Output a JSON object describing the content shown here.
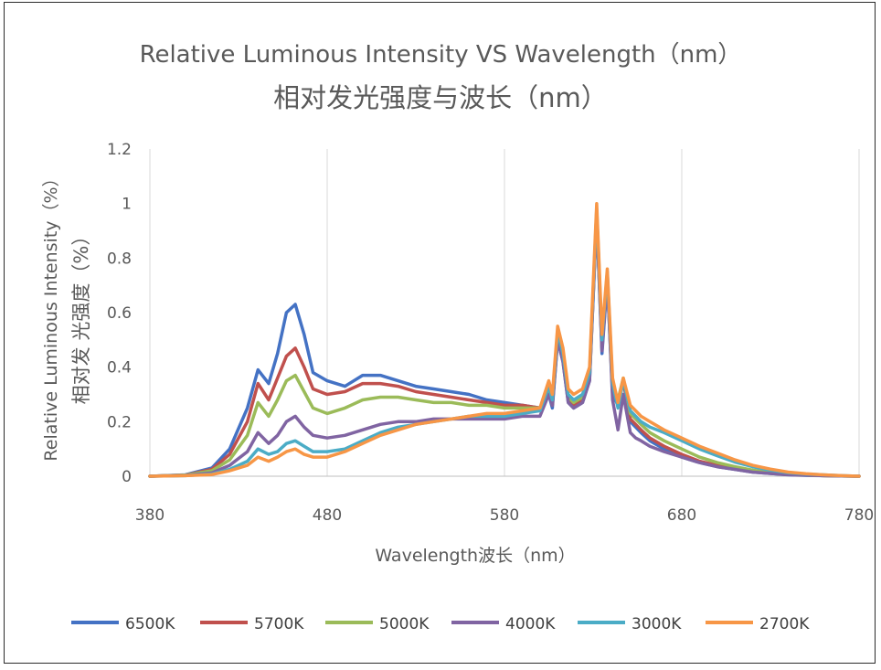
{
  "chart_data": {
    "type": "line",
    "title": "Relative Luminous Intensity VS Wavelength（nm）",
    "subtitle": "相对发光强度与波长（nm）",
    "xlabel": "Wavelength波长（nm）",
    "ylabel": "Relative Luminous Intensity（%）",
    "ylabel2": "相对发 光强度（%）",
    "xlim": [
      380,
      780
    ],
    "ylim": [
      0,
      1.2
    ],
    "x_ticks": [
      "380",
      "480",
      "580",
      "680",
      "780"
    ],
    "y_ticks": [
      "0",
      "0.2",
      "0.4",
      "0.6",
      "0.8",
      "1",
      "1.2"
    ],
    "grid": "vertical",
    "legend_position": "bottom",
    "x": [
      380,
      400,
      415,
      425,
      435,
      441,
      447,
      452,
      457,
      462,
      467,
      472,
      480,
      490,
      500,
      510,
      520,
      530,
      540,
      550,
      560,
      570,
      580,
      590,
      600,
      605,
      607,
      610,
      613,
      616,
      619,
      624,
      628,
      632,
      635,
      638,
      641,
      644,
      647,
      651,
      654,
      657,
      662,
      670,
      680,
      690,
      700,
      710,
      720,
      730,
      740,
      750,
      760,
      770,
      780
    ],
    "series": [
      {
        "name": "6500K",
        "color": "#4472c4",
        "values": [
          0,
          0.005,
          0.03,
          0.1,
          0.25,
          0.39,
          0.34,
          0.45,
          0.6,
          0.63,
          0.52,
          0.38,
          0.35,
          0.33,
          0.37,
          0.37,
          0.35,
          0.33,
          0.32,
          0.31,
          0.3,
          0.28,
          0.27,
          0.26,
          0.25,
          0.3,
          0.25,
          0.5,
          0.42,
          0.27,
          0.25,
          0.27,
          0.35,
          0.95,
          0.45,
          0.72,
          0.3,
          0.26,
          0.35,
          0.2,
          0.18,
          0.16,
          0.13,
          0.1,
          0.07,
          0.05,
          0.035,
          0.025,
          0.015,
          0.01,
          0.005,
          0.003,
          0.002,
          0.001,
          0
        ]
      },
      {
        "name": "5700K",
        "color": "#c0504d",
        "values": [
          0,
          0.004,
          0.025,
          0.08,
          0.2,
          0.34,
          0.28,
          0.36,
          0.44,
          0.47,
          0.4,
          0.32,
          0.3,
          0.31,
          0.34,
          0.34,
          0.33,
          0.31,
          0.3,
          0.29,
          0.28,
          0.27,
          0.26,
          0.26,
          0.25,
          0.31,
          0.26,
          0.51,
          0.43,
          0.28,
          0.26,
          0.28,
          0.36,
          0.96,
          0.47,
          0.73,
          0.31,
          0.27,
          0.35,
          0.21,
          0.19,
          0.17,
          0.14,
          0.11,
          0.08,
          0.055,
          0.04,
          0.028,
          0.018,
          0.011,
          0.006,
          0.004,
          0.002,
          0.001,
          0
        ]
      },
      {
        "name": "5000K",
        "color": "#9bbb59",
        "values": [
          0,
          0.004,
          0.02,
          0.06,
          0.15,
          0.27,
          0.22,
          0.28,
          0.35,
          0.37,
          0.31,
          0.25,
          0.23,
          0.25,
          0.28,
          0.29,
          0.29,
          0.28,
          0.27,
          0.27,
          0.26,
          0.26,
          0.25,
          0.25,
          0.25,
          0.32,
          0.27,
          0.52,
          0.44,
          0.29,
          0.27,
          0.29,
          0.37,
          0.97,
          0.48,
          0.74,
          0.32,
          0.28,
          0.36,
          0.23,
          0.21,
          0.19,
          0.16,
          0.13,
          0.1,
          0.07,
          0.05,
          0.035,
          0.022,
          0.013,
          0.007,
          0.004,
          0.002,
          0.001,
          0
        ]
      },
      {
        "name": "4000K",
        "color": "#8064a2",
        "values": [
          0,
          0.003,
          0.012,
          0.04,
          0.09,
          0.16,
          0.12,
          0.15,
          0.2,
          0.22,
          0.18,
          0.15,
          0.14,
          0.15,
          0.17,
          0.19,
          0.2,
          0.2,
          0.21,
          0.21,
          0.21,
          0.21,
          0.21,
          0.22,
          0.22,
          0.3,
          0.26,
          0.5,
          0.42,
          0.27,
          0.25,
          0.27,
          0.35,
          0.96,
          0.46,
          0.73,
          0.28,
          0.17,
          0.3,
          0.16,
          0.14,
          0.13,
          0.11,
          0.09,
          0.07,
          0.05,
          0.035,
          0.025,
          0.015,
          0.01,
          0.006,
          0.004,
          0.002,
          0.001,
          0
        ]
      },
      {
        "name": "3000K",
        "color": "#4bacc6",
        "values": [
          0,
          0.002,
          0.008,
          0.025,
          0.055,
          0.1,
          0.08,
          0.09,
          0.12,
          0.13,
          0.11,
          0.09,
          0.09,
          0.1,
          0.13,
          0.16,
          0.18,
          0.19,
          0.2,
          0.21,
          0.22,
          0.22,
          0.22,
          0.23,
          0.24,
          0.33,
          0.28,
          0.53,
          0.45,
          0.3,
          0.28,
          0.3,
          0.38,
          0.98,
          0.5,
          0.75,
          0.34,
          0.25,
          0.35,
          0.24,
          0.22,
          0.2,
          0.18,
          0.16,
          0.13,
          0.1,
          0.075,
          0.052,
          0.035,
          0.022,
          0.013,
          0.008,
          0.005,
          0.002,
          0
        ]
      },
      {
        "name": "2700K",
        "color": "#f79646",
        "values": [
          0,
          0.002,
          0.006,
          0.02,
          0.04,
          0.07,
          0.055,
          0.07,
          0.09,
          0.1,
          0.08,
          0.07,
          0.07,
          0.09,
          0.12,
          0.15,
          0.17,
          0.19,
          0.2,
          0.21,
          0.22,
          0.23,
          0.23,
          0.24,
          0.25,
          0.35,
          0.3,
          0.55,
          0.47,
          0.32,
          0.3,
          0.32,
          0.4,
          1.0,
          0.52,
          0.76,
          0.36,
          0.27,
          0.36,
          0.26,
          0.24,
          0.22,
          0.2,
          0.17,
          0.14,
          0.11,
          0.085,
          0.06,
          0.04,
          0.026,
          0.015,
          0.009,
          0.005,
          0.002,
          0
        ]
      }
    ]
  }
}
